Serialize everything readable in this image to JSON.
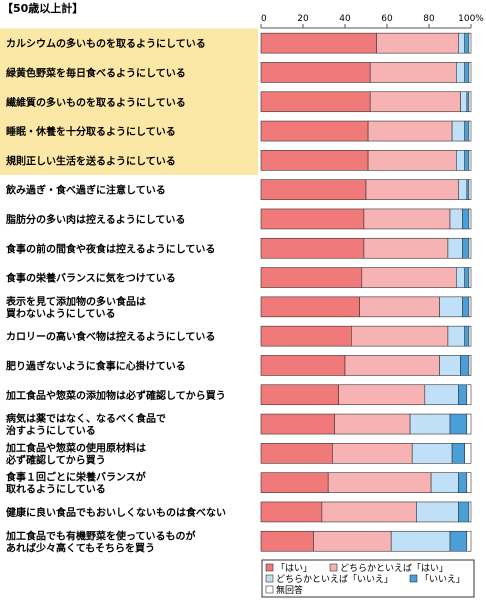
{
  "chart_data": {
    "type": "bar",
    "orientation": "horizontal",
    "stacked": true,
    "title": "【50歳以上計】",
    "xlim": [
      0,
      100
    ],
    "x_ticks": [
      "0",
      "20",
      "40",
      "60",
      "80",
      "100%"
    ],
    "grid": false,
    "legend_position": "bottom-right",
    "highlighted_rows": 5,
    "colors": {
      "はい": "#f07a7a",
      "どちらかといえば「はい」": "#f7b3b3",
      "どちらかといえば「いいえ」": "#bfe0f7",
      "いいえ": "#4a9fd8",
      "無回答": "#ffffff",
      "highlight": "#fbe7a6"
    },
    "categories": [
      [
        "カルシウムの多いものを取るようにしている"
      ],
      [
        "緑黄色野菜を毎日食べるようにしている"
      ],
      [
        "繊維質の多いものを取るようにしている"
      ],
      [
        "睡眠・休養を十分取るようにしている"
      ],
      [
        "規則正しい生活を送るようにしている"
      ],
      [
        "飲み過ぎ・食べ過ぎに注意している"
      ],
      [
        "脂肪分の多い肉は控えるようにしている"
      ],
      [
        "食事の前の間食や夜食は控えるようにしている"
      ],
      [
        "食事の栄養バランスに気をつけている"
      ],
      [
        "表示を見て添加物の多い食品は",
        "買わないようにしている"
      ],
      [
        "カロリーの高い食べ物は控えるようにしている"
      ],
      [
        "肥り過ぎないように食事に心掛けている"
      ],
      [
        "加工食品や惣菜の添加物は必ず確認してから買う"
      ],
      [
        "病気は薬ではなく、なるべく食品で",
        "治すようにしている"
      ],
      [
        "加工食品や惣菜の使用原材料は",
        "必ず確認してから買う"
      ],
      [
        "食事１回ごとに栄養バランスが",
        "取れるようにしている"
      ],
      [
        "健康に良い食品でもおいしくないものは食べない"
      ],
      [
        "加工食品でも有機野菜を使っているものが",
        "あれば少々高くてもそちらを買う"
      ]
    ],
    "series": [
      {
        "name": "「はい」",
        "values": [
          55,
          52,
          52,
          51,
          51,
          50,
          49,
          49,
          48,
          47,
          43,
          40,
          37,
          35,
          34,
          32,
          29,
          25
        ]
      },
      {
        "name": "どちらかといえば「はい」",
        "values": [
          39,
          41,
          43,
          40,
          42,
          44,
          41,
          40,
          45,
          38,
          46,
          45,
          41,
          36,
          38,
          49,
          45,
          37
        ]
      },
      {
        "name": "どちらかといえば「いいえ」",
        "values": [
          3,
          4,
          3,
          6,
          4,
          4,
          6,
          7,
          4,
          11,
          8,
          10,
          16,
          19,
          19,
          13,
          20,
          28
        ]
      },
      {
        "name": "「いいえ」",
        "values": [
          2,
          2,
          1,
          2,
          2,
          1,
          3,
          3,
          2,
          3,
          2,
          4,
          4,
          8,
          6,
          4,
          5,
          8
        ]
      },
      {
        "name": "無回答",
        "values": [
          1,
          1,
          1,
          1,
          1,
          1,
          1,
          1,
          1,
          1,
          1,
          1,
          2,
          2,
          3,
          2,
          1,
          2
        ]
      }
    ],
    "legend": [
      {
        "key": "はい",
        "label": "「はい」"
      },
      {
        "key": "どちらかといえば「はい」",
        "label": "どちらかといえば「はい」"
      },
      {
        "key": "どちらかといえば「いいえ」",
        "label": "どちらかといえば「いいえ」"
      },
      {
        "key": "いいえ",
        "label": "「いいえ」"
      },
      {
        "key": "無回答",
        "label": "無回答"
      }
    ]
  }
}
